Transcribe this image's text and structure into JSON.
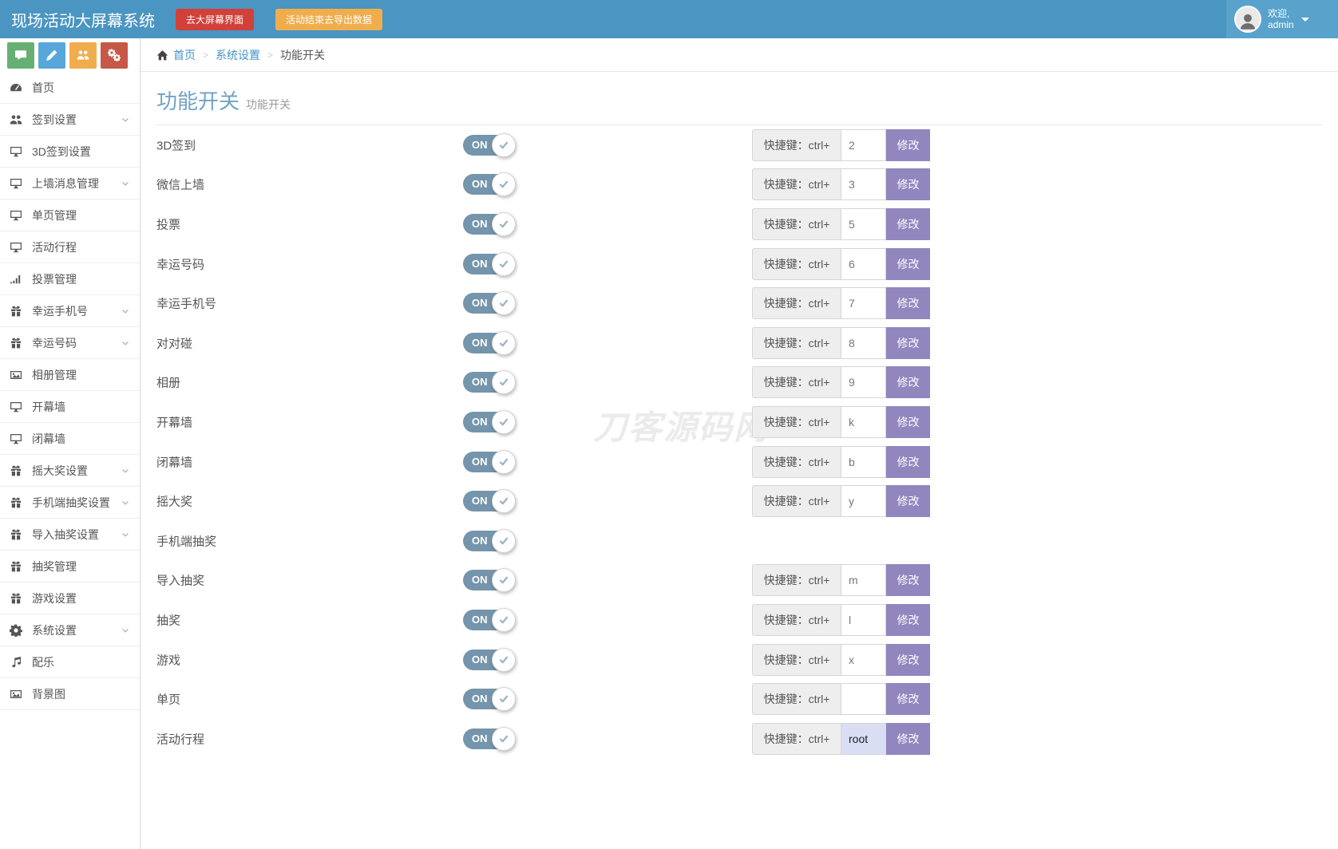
{
  "topbar": {
    "title": "现场活动大屏幕系统",
    "buttons": [
      {
        "label": "去大屏幕界面",
        "color": "#d2403a"
      },
      {
        "label": "活动结束去导出数据",
        "color": "#f0ad4e"
      }
    ],
    "welcome_line1": "欢迎,",
    "welcome_line2": "admin"
  },
  "quickbar": {
    "icons": [
      {
        "name": "comment",
        "color": "#67b073"
      },
      {
        "name": "pencil",
        "color": "#58a7db"
      },
      {
        "name": "users",
        "color": "#f0ad4e"
      },
      {
        "name": "cogs",
        "color": "#c75746"
      }
    ]
  },
  "breadcrumb": {
    "home": "首页",
    "items": [
      "系统设置",
      "功能开关"
    ]
  },
  "page": {
    "title": "功能开关",
    "subtitle": "功能开关"
  },
  "watermark": "刀客源码网",
  "features": {
    "shortcut_label": "快捷键：ctrl+",
    "modify_label": "修改",
    "toggle_on": "ON",
    "rows": [
      {
        "label": "3D签到",
        "key": "2"
      },
      {
        "label": "微信上墙",
        "key": "3"
      },
      {
        "label": "投票",
        "key": "5"
      },
      {
        "label": "幸运号码",
        "key": "6"
      },
      {
        "label": "幸运手机号",
        "key": "7"
      },
      {
        "label": "对对碰",
        "key": "8"
      },
      {
        "label": "相册",
        "key": "9"
      },
      {
        "label": "开幕墙",
        "key": "k"
      },
      {
        "label": "闭幕墙",
        "key": "b"
      },
      {
        "label": "摇大奖",
        "key": "y"
      },
      {
        "label": "手机端抽奖"
      },
      {
        "label": "导入抽奖",
        "key": "m"
      },
      {
        "label": "抽奖",
        "key": "l"
      },
      {
        "label": "游戏",
        "key": "x"
      },
      {
        "label": "单页",
        "key": ""
      },
      {
        "label": "活动行程",
        "key": "root",
        "key_selected": true
      }
    ]
  },
  "sidebar": {
    "items": [
      {
        "label": "首页",
        "icon": "dashboard"
      },
      {
        "label": "签到设置",
        "icon": "users",
        "expandable": true
      },
      {
        "label": "3D签到设置",
        "icon": "desktop"
      },
      {
        "label": "上墙消息管理",
        "icon": "desktop",
        "expandable": true
      },
      {
        "label": "单页管理",
        "icon": "desktop"
      },
      {
        "label": "活动行程",
        "icon": "desktop"
      },
      {
        "label": "投票管理",
        "icon": "signal"
      },
      {
        "label": "幸运手机号",
        "icon": "gift",
        "expandable": true
      },
      {
        "label": "幸运号码",
        "icon": "gift",
        "expandable": true
      },
      {
        "label": "相册管理",
        "icon": "image"
      },
      {
        "label": "开幕墙",
        "icon": "desktop"
      },
      {
        "label": "闭幕墙",
        "icon": "desktop"
      },
      {
        "label": "摇大奖设置",
        "icon": "gift",
        "expandable": true
      },
      {
        "label": "手机端抽奖设置",
        "icon": "gift",
        "expandable": true
      },
      {
        "label": "导入抽奖设置",
        "icon": "gift",
        "expandable": true
      },
      {
        "label": "抽奖管理",
        "icon": "gift"
      },
      {
        "label": "游戏设置",
        "icon": "gift"
      },
      {
        "label": "系统设置",
        "icon": "gear",
        "expandable": true
      },
      {
        "label": "配乐",
        "icon": "music"
      },
      {
        "label": "背景图",
        "icon": "image"
      }
    ]
  },
  "colors": {
    "topbar_blue": "#4a95c1",
    "topbar_user_panel": "#58a2cb",
    "danger_red": "#d2403a",
    "warning_orange": "#f0ad4e",
    "quick_green": "#67b073",
    "quick_blue": "#58a7db",
    "quick_red": "#c75746",
    "title_blue": "#70a3c5",
    "link_blue": "#4593c8",
    "toggle_blue": "#7495ab",
    "modify_purple": "#9186be",
    "selected_input": "#d9def5"
  }
}
